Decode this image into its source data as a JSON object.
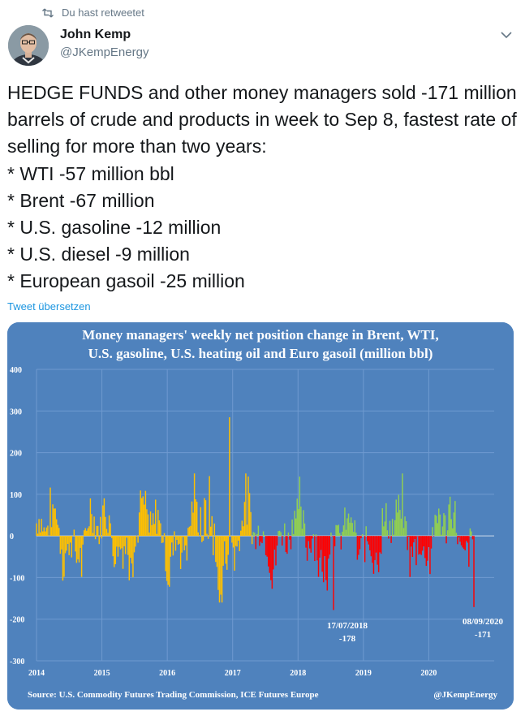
{
  "retweet": {
    "label": "Du hast retweetet"
  },
  "author": {
    "name": "John Kemp",
    "handle": "@JKempEnergy"
  },
  "tweet": {
    "text": "HEDGE FUNDS and other money managers sold -171 million barrels of crude and products in week to Sep 8, fastest rate of selling for more than two years:\n* WTI -57 million bbl\n* Brent -67 million\n* U.S. gasoline -12 million\n* U.S. diesel -9 million\n* European gasoil -25 million",
    "translate_label": "Tweet übersetzen"
  },
  "icons": {
    "retweet": "retweet-icon",
    "menu": "chevron-down-icon"
  },
  "colors": {
    "chart_bg": "#4f82bd",
    "bar_yellow": "#ffc000",
    "bar_green": "#92d050",
    "bar_red": "#ff0000",
    "link": "#1b95e0"
  },
  "chart_data": {
    "type": "bar",
    "title": "Money managers' weekly net position change in Brent, WTI,",
    "title_line2": "U.S. gasoline, U.S. heating oil and Euro gasoil (million bbl)",
    "ylim": [
      -300,
      400
    ],
    "y_ticks": [
      "400",
      "300",
      "200",
      "100",
      "0",
      "-100",
      "-200",
      "-300"
    ],
    "x_range": [
      2014,
      2021
    ],
    "x_ticks": [
      "2014",
      "2015",
      "2016",
      "2017",
      "2018",
      "2019",
      "2020"
    ],
    "source": "Source: U.S. Commodity Futures Trading Commission, ICE Futures Europe",
    "credit": "@JKempEnergy",
    "annotations": [
      {
        "date": "17/07/2018",
        "value": "-178"
      },
      {
        "date": "08/09/2020",
        "value": "-171"
      }
    ],
    "series_colors": {
      "2014-2016": "#ffc000",
      "2017-2020 positive": "#92d050",
      "2017-2020 negative": "#ff0000"
    },
    "key_points": [
      {
        "x": 2016.95,
        "y": 285
      },
      {
        "x": 2018.55,
        "y": -178
      },
      {
        "x": 2020.69,
        "y": -171
      }
    ]
  }
}
